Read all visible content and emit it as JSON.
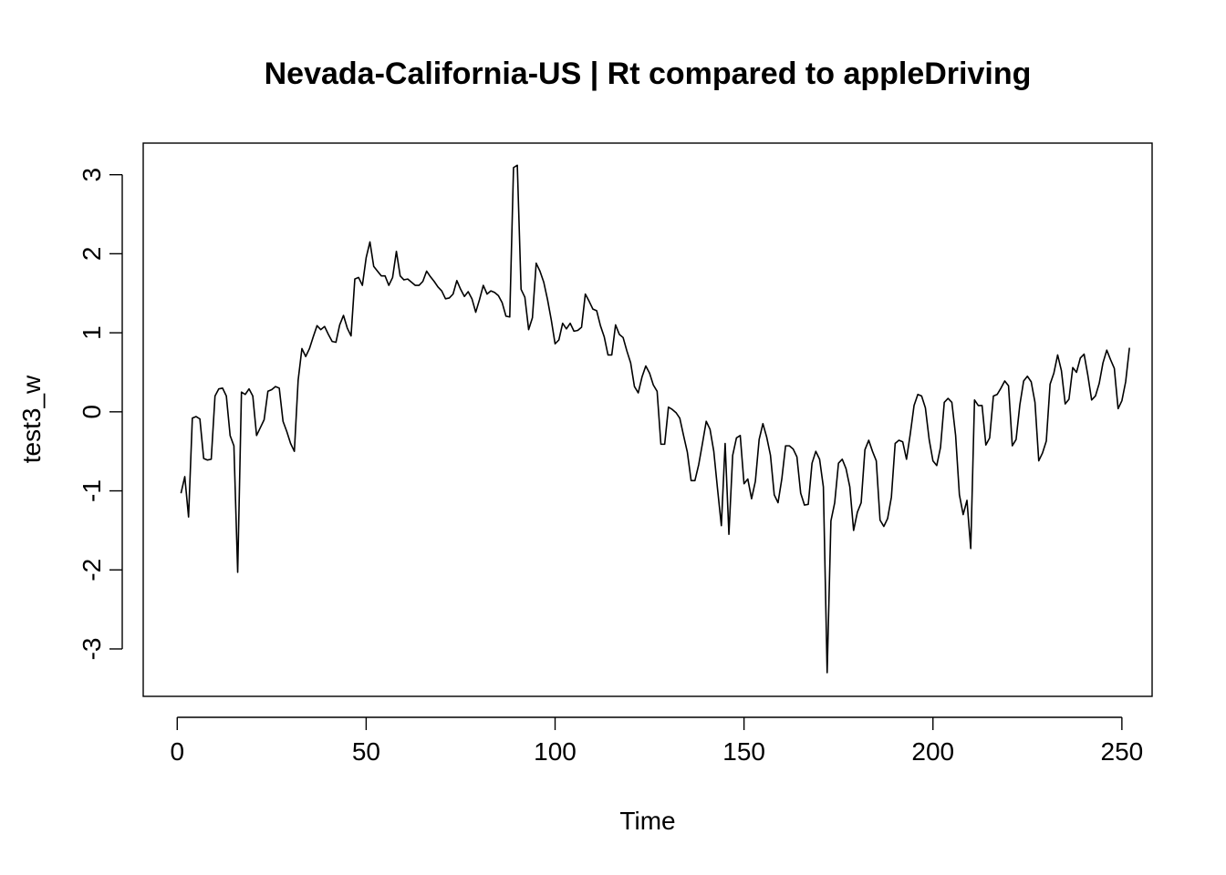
{
  "chart_data": {
    "type": "line",
    "title": "Nevada-California-US | Rt compared to appleDriving",
    "xlabel": "Time",
    "ylabel": "test3_w",
    "xlim": [
      -9,
      258
    ],
    "ylim": [
      -3.6,
      3.4
    ],
    "x_ticks": [
      0,
      50,
      100,
      150,
      200,
      250
    ],
    "y_ticks": [
      -3,
      -2,
      -1,
      0,
      1,
      2,
      3
    ],
    "x_tick_labels": [
      "0",
      "50",
      "100",
      "150",
      "200",
      "250"
    ],
    "y_tick_labels": [
      "-3",
      "-2",
      "-1",
      "0",
      "1",
      "2",
      "3"
    ],
    "x_start": 1,
    "series": [
      {
        "values": [
          -1.03,
          -0.82,
          -1.33,
          -0.08,
          -0.06,
          -0.09,
          -0.59,
          -0.61,
          -0.6,
          0.2,
          0.29,
          0.3,
          0.2,
          -0.3,
          -0.43,
          -2.03,
          0.25,
          0.22,
          0.29,
          0.2,
          -0.3,
          -0.2,
          -0.1,
          0.26,
          0.28,
          0.32,
          0.3,
          -0.12,
          -0.25,
          -0.4,
          -0.5,
          0.4,
          0.8,
          0.7,
          0.8,
          0.95,
          1.09,
          1.04,
          1.08,
          0.98,
          0.89,
          0.88,
          1.1,
          1.22,
          1.06,
          0.96,
          1.68,
          1.7,
          1.6,
          1.95,
          2.15,
          1.84,
          1.78,
          1.72,
          1.72,
          1.6,
          1.7,
          2.03,
          1.72,
          1.67,
          1.68,
          1.64,
          1.6,
          1.6,
          1.65,
          1.78,
          1.71,
          1.65,
          1.58,
          1.53,
          1.43,
          1.44,
          1.49,
          1.66,
          1.55,
          1.46,
          1.52,
          1.43,
          1.26,
          1.42,
          1.6,
          1.49,
          1.53,
          1.51,
          1.47,
          1.38,
          1.21,
          1.2,
          3.09,
          3.12,
          1.55,
          1.45,
          1.04,
          1.19,
          1.88,
          1.78,
          1.64,
          1.42,
          1.16,
          0.86,
          0.91,
          1.12,
          1.05,
          1.12,
          1.02,
          1.03,
          1.07,
          1.49,
          1.4,
          1.3,
          1.28,
          1.09,
          0.95,
          0.72,
          0.72,
          1.1,
          0.98,
          0.94,
          0.77,
          0.62,
          0.32,
          0.24,
          0.44,
          0.58,
          0.49,
          0.34,
          0.26,
          -0.41,
          -0.41,
          0.06,
          0.03,
          -0.01,
          -0.08,
          -0.3,
          -0.51,
          -0.87,
          -0.87,
          -0.67,
          -0.4,
          -0.12,
          -0.22,
          -0.5,
          -0.98,
          -1.44,
          -0.4,
          -1.55,
          -0.55,
          -0.33,
          -0.3,
          -0.91,
          -0.85,
          -1.1,
          -0.88,
          -0.35,
          -0.15,
          -0.32,
          -0.55,
          -1.05,
          -1.15,
          -0.85,
          -0.43,
          -0.43,
          -0.47,
          -0.57,
          -1.03,
          -1.18,
          -1.17,
          -0.65,
          -0.5,
          -0.6,
          -0.95,
          -3.3,
          -1.38,
          -1.15,
          -0.65,
          -0.6,
          -0.72,
          -0.95,
          -1.5,
          -1.27,
          -1.15,
          -0.48,
          -0.36,
          -0.5,
          -0.62,
          -1.37,
          -1.45,
          -1.35,
          -1.08,
          -0.4,
          -0.36,
          -0.38,
          -0.6,
          -0.28,
          0.08,
          0.22,
          0.2,
          0.05,
          -0.35,
          -0.62,
          -0.68,
          -0.45,
          0.12,
          0.17,
          0.12,
          -0.3,
          -1.05,
          -1.3,
          -1.12,
          -1.73,
          0.15,
          0.08,
          0.08,
          -0.42,
          -0.33,
          0.2,
          0.22,
          0.3,
          0.39,
          0.33,
          -0.43,
          -0.35,
          0.09,
          0.39,
          0.45,
          0.38,
          0.12,
          -0.62,
          -0.52,
          -0.37,
          0.35,
          0.49,
          0.72,
          0.52,
          0.1,
          0.16,
          0.56,
          0.5,
          0.68,
          0.73,
          0.46,
          0.15,
          0.2,
          0.36,
          0.62,
          0.78,
          0.66,
          0.55,
          0.04,
          0.14,
          0.38,
          0.81
        ]
      }
    ]
  }
}
